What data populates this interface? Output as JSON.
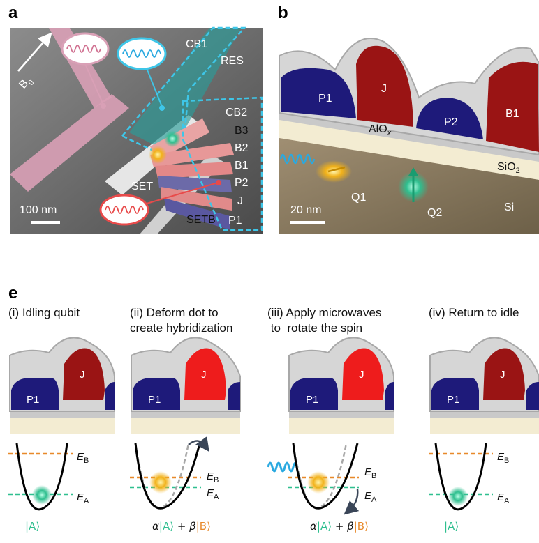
{
  "colors": {
    "state_a": "#2fbf8f",
    "state_b": "#e8892a",
    "p_gate": "#1e1a7a",
    "j_gate_idle": "#9a1414",
    "j_gate_active": "#ee1c1c",
    "microwave": "#2aa9e0",
    "dash_cyan": "#3ec6e8",
    "res_pink": "#d9a0b6",
    "res_red": "#e84a4a"
  },
  "panel_a": {
    "letter": "a",
    "field_label": "B",
    "field_sub": "0",
    "scale_bar": "100 nm",
    "labels": {
      "cb1": "CB1",
      "res": "RES",
      "cb2": "CB2",
      "b3": "B3",
      "b2": "B2",
      "b1": "B1",
      "p2": "P2",
      "j": "J",
      "p1": "P1",
      "set": "SET",
      "setb": "SETB"
    }
  },
  "panel_b": {
    "letter": "b",
    "scale_bar": "20 nm",
    "gates": {
      "p1": "P1",
      "j": "J",
      "p2": "P2",
      "b1": "B1"
    },
    "layers": {
      "aloxs": "AlO",
      "aloxs_sub": "x",
      "sio2": "SiO",
      "sio2_sub": "2",
      "si": "Si"
    },
    "qubits": {
      "q1": "Q1",
      "q2": "Q2"
    }
  },
  "panel_e": {
    "letter": "e",
    "steps": [
      {
        "title_line1": "(i) Idling qubit",
        "title_line2": "",
        "gate_p": "P1",
        "gate_j": "J",
        "state": "|A⟩"
      },
      {
        "title_line1": "(ii) Deform dot to",
        "title_line2": "create hybridization",
        "gate_p": "P1",
        "gate_j": "J",
        "alpha": "α",
        "ket_a": "|A⟩",
        "plus": " + ",
        "beta": "β",
        "ket_b": "|B⟩"
      },
      {
        "title_line1": "(iii) Apply microwaves",
        "title_line2": " to  rotate the spin",
        "gate_p": "P1",
        "gate_j": "J",
        "alpha": "α",
        "ket_a": "|A⟩",
        "plus": " + ",
        "beta": "β",
        "ket_b": "|B⟩"
      },
      {
        "title_line1": "(iv) Return to idle",
        "title_line2": "",
        "gate_p": "P1",
        "gate_j": "J",
        "state": "|A⟩"
      }
    ],
    "energy": {
      "e": "E",
      "sub_b": "B",
      "sub_a": "A"
    }
  }
}
